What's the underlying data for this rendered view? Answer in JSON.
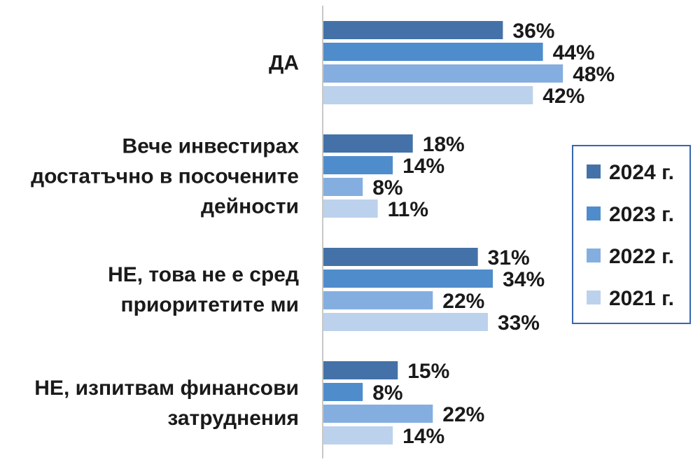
{
  "chart_data": {
    "type": "bar",
    "orientation": "horizontal",
    "title": "",
    "xlabel": "",
    "ylabel": "",
    "xlim": [
      0,
      100
    ],
    "grid": false,
    "legend_position": "right",
    "value_suffix": "%",
    "categories": [
      [
        "ДА"
      ],
      [
        "Вече инвестирах",
        "достатъчно в посочените",
        "дейности"
      ],
      [
        "НЕ, това не е сред",
        "приоритетите ми"
      ],
      [
        "НЕ, изпитвам финансови",
        "затруднения"
      ]
    ],
    "series": [
      {
        "name": "2024 г.",
        "color": "#4472a8",
        "values": [
          36,
          18,
          31,
          15
        ]
      },
      {
        "name": "2023 г.",
        "color": "#4f8ccc",
        "values": [
          44,
          14,
          34,
          8
        ]
      },
      {
        "name": "2022 г.",
        "color": "#85aee0",
        "values": [
          48,
          8,
          22,
          22
        ]
      },
      {
        "name": "2021 г.",
        "color": "#bcd1ec",
        "values": [
          42,
          11,
          33,
          14
        ]
      }
    ]
  }
}
